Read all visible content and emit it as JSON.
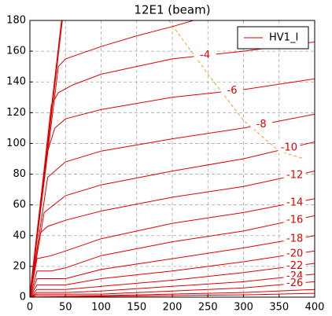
{
  "chart_data": {
    "type": "line",
    "title": "12E1 (beam)",
    "xlim": [
      0,
      400
    ],
    "ylim": [
      0,
      180
    ],
    "xticks": [
      0,
      50,
      100,
      150,
      200,
      250,
      300,
      350,
      400
    ],
    "yticks": [
      0,
      20,
      40,
      60,
      80,
      100,
      120,
      140,
      160,
      180
    ],
    "grid": true,
    "legend": "upper right",
    "series": [
      {
        "name": "HV1_I",
        "color": "#e00000",
        "linewidth": 2,
        "x": [
          0,
          45
        ],
        "values": [
          0,
          180
        ]
      },
      {
        "color": "#e00000",
        "x": [
          0,
          40,
          50,
          100,
          150,
          200,
          230
        ],
        "values": [
          0,
          150,
          155,
          163,
          170,
          176,
          180
        ]
      },
      {
        "label": "-4",
        "color": "#e00000",
        "x": [
          0,
          30,
          40,
          60,
          100,
          200,
          300,
          400
        ],
        "values": [
          0,
          125,
          133,
          138,
          145,
          155,
          160,
          166
        ]
      },
      {
        "label": "-6",
        "color": "#e00000",
        "x": [
          0,
          25,
          35,
          50,
          100,
          200,
          300,
          400
        ],
        "values": [
          0,
          95,
          110,
          116,
          122,
          130,
          135,
          142
        ]
      },
      {
        "label": "-8",
        "color": "#e00000",
        "x": [
          0,
          25,
          50,
          100,
          200,
          300,
          400
        ],
        "values": [
          0,
          78,
          88,
          95,
          103,
          110,
          119
        ]
      },
      {
        "label": "-10",
        "color": "#e00000",
        "x": [
          0,
          20,
          50,
          100,
          200,
          300,
          400
        ],
        "values": [
          0,
          55,
          66,
          73,
          82,
          90,
          101
        ]
      },
      {
        "label": "-12",
        "color": "#e00000",
        "x": [
          0,
          15,
          25,
          50,
          100,
          200,
          300,
          400
        ],
        "values": [
          0,
          42,
          46,
          50,
          56,
          65,
          72,
          82
        ]
      },
      {
        "label": "-14",
        "color": "#e00000",
        "x": [
          0,
          10,
          30,
          50,
          100,
          200,
          300,
          400
        ],
        "values": [
          0,
          25,
          27,
          30,
          38,
          48,
          55,
          64
        ]
      },
      {
        "label": "-16",
        "color": "#e00000",
        "x": [
          0,
          10,
          30,
          50,
          100,
          200,
          300,
          400
        ],
        "values": [
          0,
          17,
          17,
          19,
          27,
          36,
          43,
          53
        ]
      },
      {
        "label": "-18",
        "color": "#e00000",
        "x": [
          0,
          10,
          50,
          100,
          200,
          300,
          400
        ],
        "values": [
          0,
          12,
          12,
          18,
          25,
          32,
          40
        ]
      },
      {
        "label": "-20",
        "color": "#e00000",
        "x": [
          0,
          10,
          50,
          100,
          200,
          300,
          400
        ],
        "values": [
          0,
          8,
          8,
          12,
          17,
          23,
          30
        ]
      },
      {
        "label": "-22",
        "color": "#e00000",
        "x": [
          0,
          10,
          50,
          100,
          200,
          300,
          400
        ],
        "values": [
          0,
          5,
          5,
          7,
          11,
          16,
          22
        ]
      },
      {
        "label": "-24",
        "color": "#e00000",
        "x": [
          0,
          10,
          50,
          100,
          200,
          300,
          400
        ],
        "values": [
          0,
          3,
          3,
          4,
          7,
          10,
          15
        ]
      },
      {
        "label": "-26",
        "color": "#e00000",
        "x": [
          0,
          10,
          100,
          200,
          300,
          400
        ],
        "values": [
          0,
          2,
          2,
          4,
          6,
          10
        ]
      },
      {
        "color": "#e00000",
        "x": [
          0,
          10,
          100,
          200,
          300,
          400
        ],
        "values": [
          0,
          1,
          1,
          2,
          3,
          5
        ]
      },
      {
        "color": "#e00000",
        "x": [
          0,
          100,
          200,
          300,
          400
        ],
        "values": [
          0,
          0.5,
          1,
          1.5,
          2.5
        ]
      }
    ],
    "ridge": {
      "color": "#f0a030",
      "x": [
        195,
        250,
        300,
        350,
        385
      ],
      "values": [
        180,
        145,
        115,
        95,
        90
      ]
    }
  }
}
